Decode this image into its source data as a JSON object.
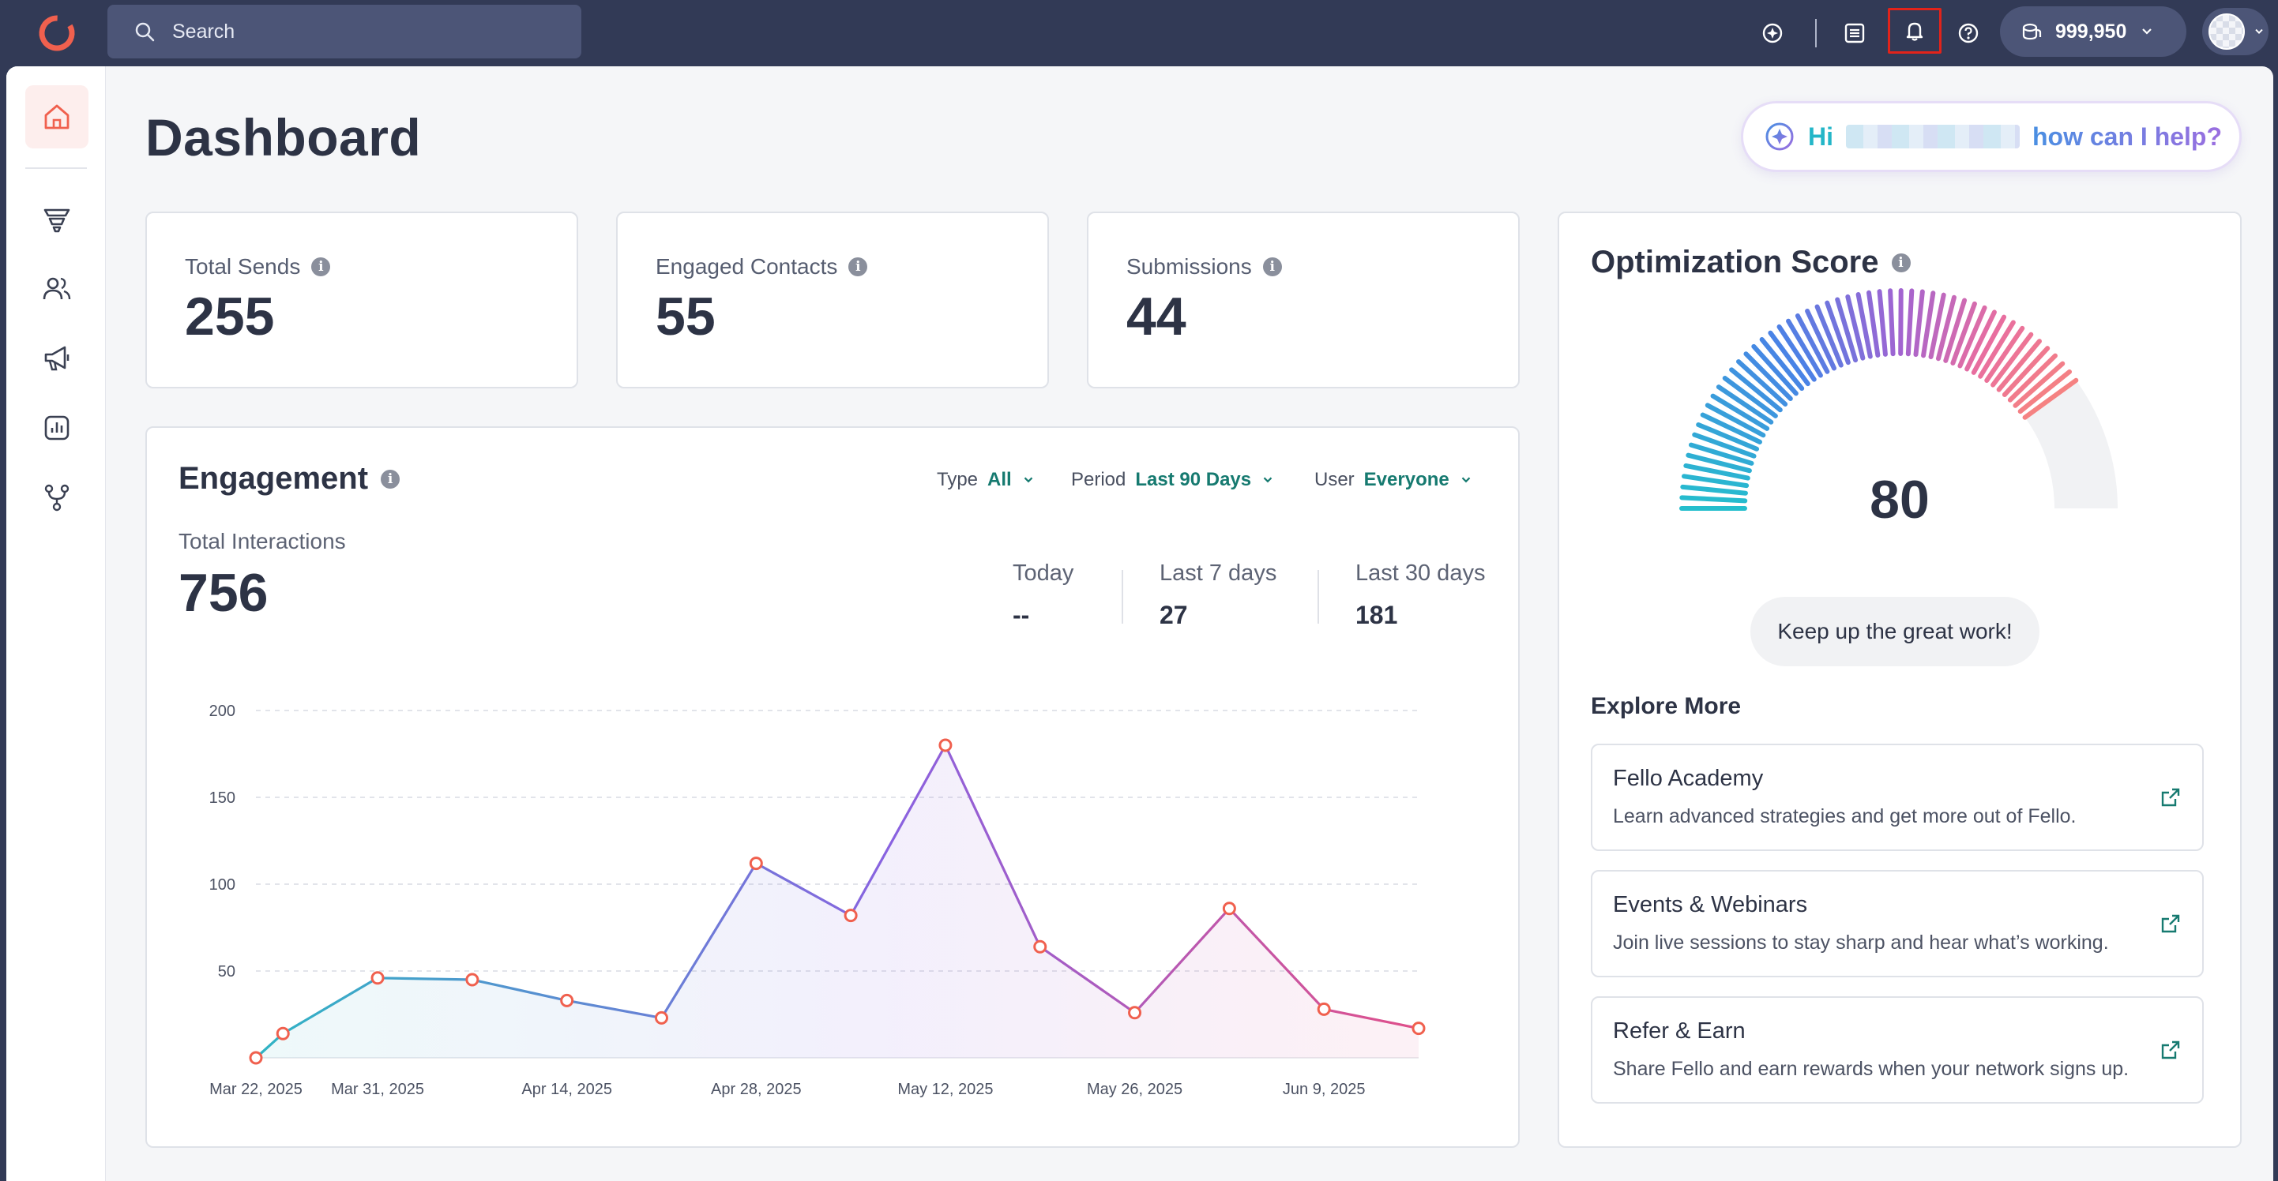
{
  "topbar": {
    "search_placeholder": "Search",
    "icons": [
      "ai-sparkle-icon",
      "document-list-icon",
      "bell-icon",
      "help-icon"
    ],
    "credits": "999,950",
    "accent_color": "#e2231a"
  },
  "sidebar": {
    "items": [
      "home-icon",
      "funnel-icon",
      "contacts-icon",
      "campaigns-icon",
      "analytics-icon",
      "workflows-icon"
    ]
  },
  "page": {
    "title": "Dashboard",
    "assistant": {
      "greeting": "Hi",
      "prompt": "how can I help?"
    }
  },
  "stats": [
    {
      "label": "Total Sends",
      "value": "255"
    },
    {
      "label": "Engaged Contacts",
      "value": "55"
    },
    {
      "label": "Submissions",
      "value": "44"
    }
  ],
  "engagement": {
    "title": "Engagement",
    "filters": [
      {
        "label": "Type",
        "value": "All"
      },
      {
        "label": "Period",
        "value": "Last 90 Days"
      },
      {
        "label": "User",
        "value": "Everyone"
      }
    ],
    "total_label": "Total Interactions",
    "total_value": "756",
    "periods": [
      {
        "label": "Today",
        "value": "--"
      },
      {
        "label": "Last 7 days",
        "value": "27"
      },
      {
        "label": "Last 30 days",
        "value": "181"
      }
    ]
  },
  "chart_data": {
    "type": "line",
    "title": "",
    "xlabel": "",
    "ylabel": "",
    "ylim": [
      0,
      200
    ],
    "yticks": [
      50,
      100,
      150,
      200
    ],
    "x_tick_labels": [
      "Mar 22, 2025",
      "Mar 31, 2025",
      "Apr 14, 2025",
      "Apr 28, 2025",
      "May 12, 2025",
      "May 26, 2025",
      "Jun 9, 2025"
    ],
    "x": [
      "Mar 22, 2025",
      "Mar 24, 2025",
      "Mar 31, 2025",
      "Apr 7, 2025",
      "Apr 14, 2025",
      "Apr 21, 2025",
      "Apr 28, 2025",
      "May 5, 2025",
      "May 12, 2025",
      "May 19, 2025",
      "May 26, 2025",
      "Jun 2, 2025",
      "Jun 9, 2025",
      "Jun 16, 2025"
    ],
    "series": [
      {
        "values": [
          0,
          14,
          46,
          45,
          33,
          23,
          112,
          82,
          180,
          64,
          26,
          86,
          28,
          17
        ]
      }
    ],
    "grid": true,
    "colors": {
      "start": "#2fb4c4",
      "middle": "#8a62e0",
      "end": "#e0508a",
      "marker": "#f0604e"
    }
  },
  "optimization": {
    "title": "Optimization Score",
    "score": 80,
    "max": 100,
    "message": "Keep up the great work!",
    "explore_title": "Explore More",
    "links": [
      {
        "title": "Fello Academy",
        "desc": "Learn advanced strategies and get more out of Fello."
      },
      {
        "title": "Events & Webinars",
        "desc": "Join live sessions to stay sharp and hear what’s working."
      },
      {
        "title": "Refer & Earn",
        "desc": "Share Fello and earn rewards when your network signs up."
      }
    ]
  }
}
